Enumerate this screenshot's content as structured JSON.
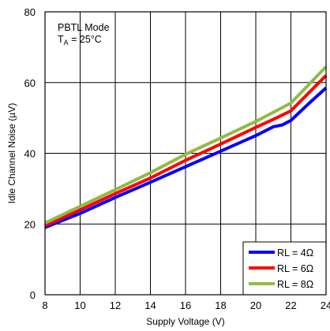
{
  "chart_data": {
    "type": "line",
    "title": "",
    "xlabel": "Supply Voltage (V)",
    "ylabel": "Idle Channel Noise (µV)",
    "xlim": [
      8,
      24
    ],
    "ylim": [
      0,
      80
    ],
    "xticks": [
      "8",
      "10",
      "12",
      "14",
      "16",
      "18",
      "20",
      "22",
      "24"
    ],
    "yticks": [
      "0",
      "20",
      "40",
      "60",
      "80"
    ],
    "grid": true,
    "legend_position": "bottom-right",
    "annotation": {
      "line1": "PBTL Mode",
      "line2_main": "T",
      "line2_sub": "A",
      "line2_rest": " = 25°C"
    },
    "series": [
      {
        "name": "RL = 4Ω",
        "color": "#0000ff",
        "x": [
          8,
          10,
          12,
          14,
          16,
          18,
          20,
          21,
          21.5,
          22,
          23,
          24
        ],
        "y": [
          19,
          23,
          27.5,
          31.8,
          36.2,
          40.6,
          45,
          47.5,
          48,
          49.3,
          54,
          58.5
        ]
      },
      {
        "name": "RL = 6Ω",
        "color": "#ff0000",
        "x": [
          8,
          10,
          12,
          14,
          16,
          18,
          20,
          21,
          22,
          23,
          24
        ],
        "y": [
          19.5,
          24,
          28.6,
          33,
          38,
          42.6,
          47.3,
          49.6,
          52,
          57,
          62
        ]
      },
      {
        "name": "RL = 8Ω",
        "color": "#8fbc45",
        "x": [
          8,
          10,
          12,
          14,
          16,
          18,
          20,
          22,
          24
        ],
        "y": [
          20.3,
          25,
          29.7,
          34.5,
          39.7,
          44.3,
          49,
          54.2,
          64.5
        ]
      }
    ]
  }
}
